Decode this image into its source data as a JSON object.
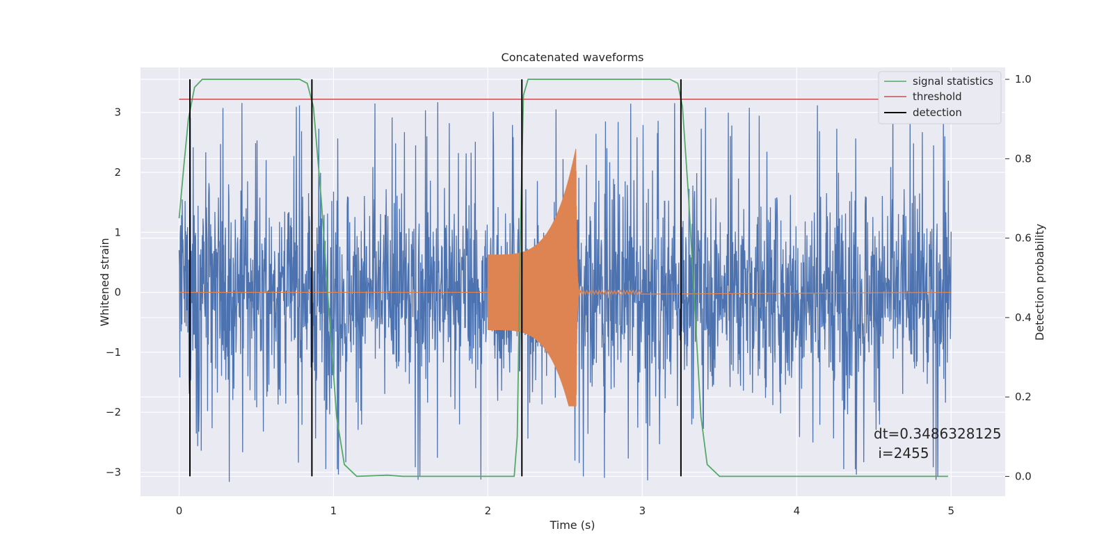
{
  "chart_data": {
    "type": "line",
    "title": "Concatenated waveforms",
    "xlabel": "Time (s)",
    "ylabel": "Whitened strain",
    "y2label": "Detection probability",
    "xlim": [
      -0.25,
      5.35
    ],
    "ylim": [
      -3.4,
      3.75
    ],
    "y2lim": [
      -0.05,
      1.03
    ],
    "xticks": [
      0,
      1,
      2,
      3,
      4,
      5
    ],
    "xtick_labels": [
      "0",
      "1",
      "2",
      "3",
      "4",
      "5"
    ],
    "yticks": [
      -3,
      -2,
      -1,
      0,
      1,
      2,
      3
    ],
    "ytick_labels": [
      "−3",
      "−2",
      "−1",
      "0",
      "1",
      "2",
      "3"
    ],
    "y2ticks": [
      0.0,
      0.2,
      0.4,
      0.6,
      0.8,
      1.0
    ],
    "y2tick_labels": [
      "0.0",
      "0.2",
      "0.4",
      "0.6",
      "0.8",
      "1.0"
    ],
    "grid": true,
    "legend_position": "top-right",
    "series": [
      {
        "name": "",
        "kind": "noise",
        "axis": "left",
        "color": "#4c72b0",
        "x_range": [
          0,
          5
        ],
        "amplitude_typical": 1.5,
        "amplitude_max": 3.2
      },
      {
        "name": "",
        "kind": "chirp",
        "axis": "left",
        "color": "#dd8452",
        "x_range": [
          0,
          5
        ],
        "chirp_start": 2.0,
        "chirp_peak": 2.57,
        "chirp_end": 2.6,
        "amplitude_start": 0.63,
        "amplitude_peak_pos": 2.4,
        "amplitude_peak_neg": -1.9
      },
      {
        "name": "signal statistics",
        "axis": "right",
        "color": "#55a868",
        "points": [
          [
            0.0,
            0.65
          ],
          [
            0.03,
            0.78
          ],
          [
            0.06,
            0.9
          ],
          [
            0.1,
            0.98
          ],
          [
            0.15,
            1.0
          ],
          [
            0.78,
            1.0
          ],
          [
            0.83,
            0.99
          ],
          [
            0.87,
            0.93
          ],
          [
            0.92,
            0.7
          ],
          [
            0.97,
            0.42
          ],
          [
            1.02,
            0.15
          ],
          [
            1.07,
            0.03
          ],
          [
            1.15,
            0.0
          ],
          [
            1.35,
            0.003
          ],
          [
            1.45,
            0.0
          ],
          [
            2.17,
            0.0
          ],
          [
            2.19,
            0.1
          ],
          [
            2.21,
            0.6
          ],
          [
            2.23,
            0.96
          ],
          [
            2.26,
            1.0
          ],
          [
            3.18,
            1.0
          ],
          [
            3.23,
            0.99
          ],
          [
            3.26,
            0.93
          ],
          [
            3.3,
            0.7
          ],
          [
            3.34,
            0.42
          ],
          [
            3.38,
            0.15
          ],
          [
            3.42,
            0.03
          ],
          [
            3.5,
            0.0
          ],
          [
            4.98,
            0.0
          ]
        ]
      },
      {
        "name": "threshold",
        "axis": "right",
        "color": "#c44e52",
        "y": 0.95,
        "x_range": [
          0,
          5
        ]
      },
      {
        "name": "detection",
        "axis": "right",
        "color": "#000000",
        "x": [
          0.07,
          0.86,
          2.22,
          3.25
        ],
        "y_range": [
          0.0,
          1.0
        ]
      }
    ],
    "annotation": {
      "lines": [
        "dt=0.3486328125",
        " i=2455"
      ],
      "x": 4.52,
      "y": -2.42
    },
    "colors": {
      "axes_bg": "#eaeaf2",
      "grid": "#ffffff",
      "text": "#262626"
    }
  }
}
